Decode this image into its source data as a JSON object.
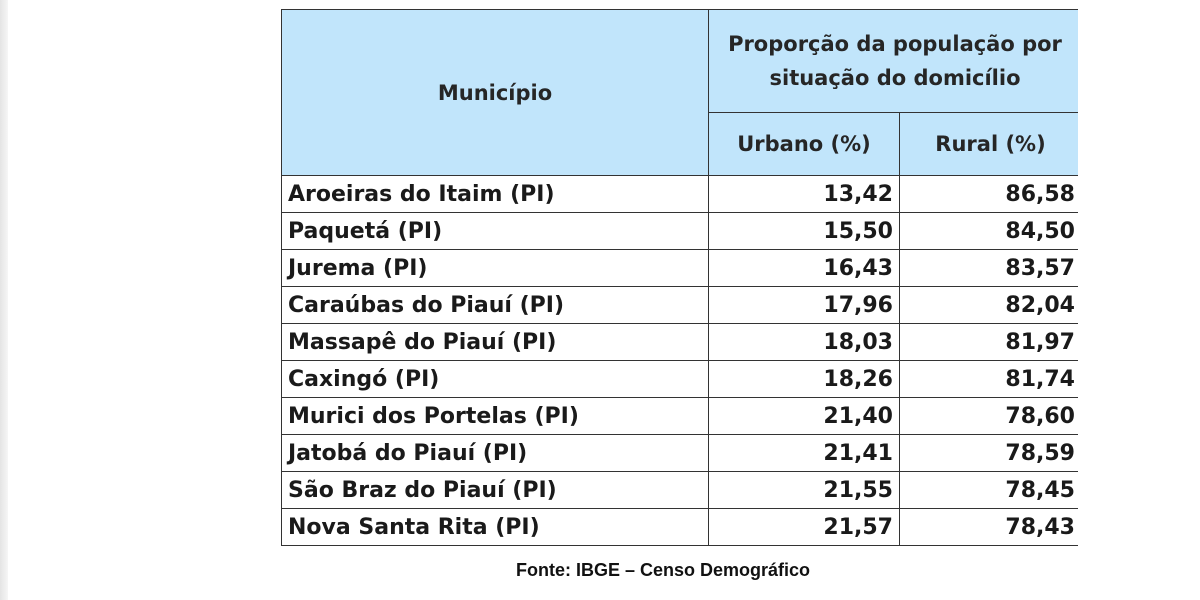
{
  "table": {
    "header": {
      "municipio": "Município",
      "group": "Proporção da população por situação do domicílio",
      "urbano": "Urbano (%)",
      "rural": "Rural (%)"
    },
    "rows": [
      {
        "municipio": "Aroeiras do Itaim (PI)",
        "urbano": "13,42",
        "rural": "86,58"
      },
      {
        "municipio": "Paquetá (PI)",
        "urbano": "15,50",
        "rural": "84,50"
      },
      {
        "municipio": "Jurema (PI)",
        "urbano": "16,43",
        "rural": "83,57"
      },
      {
        "municipio": "Caraúbas do Piauí (PI)",
        "urbano": "17,96",
        "rural": "82,04"
      },
      {
        "municipio": "Massapê do Piauí (PI)",
        "urbano": "18,03",
        "rural": "81,97"
      },
      {
        "municipio": "Caxingó (PI)",
        "urbano": "18,26",
        "rural": "81,74"
      },
      {
        "municipio": "Murici dos Portelas (PI)",
        "urbano": "21,40",
        "rural": "78,60"
      },
      {
        "municipio": "Jatobá do Piauí (PI)",
        "urbano": "21,41",
        "rural": "78,59"
      },
      {
        "municipio": "São Braz do Piauí (PI)",
        "urbano": "21,55",
        "rural": "78,45"
      },
      {
        "municipio": "Nova Santa Rita (PI)",
        "urbano": "21,57",
        "rural": "78,43"
      }
    ]
  },
  "source": "Fonte: IBGE – Censo Demográfico",
  "colors": {
    "header_bg": "#c1e5fb",
    "border": "#333333"
  }
}
